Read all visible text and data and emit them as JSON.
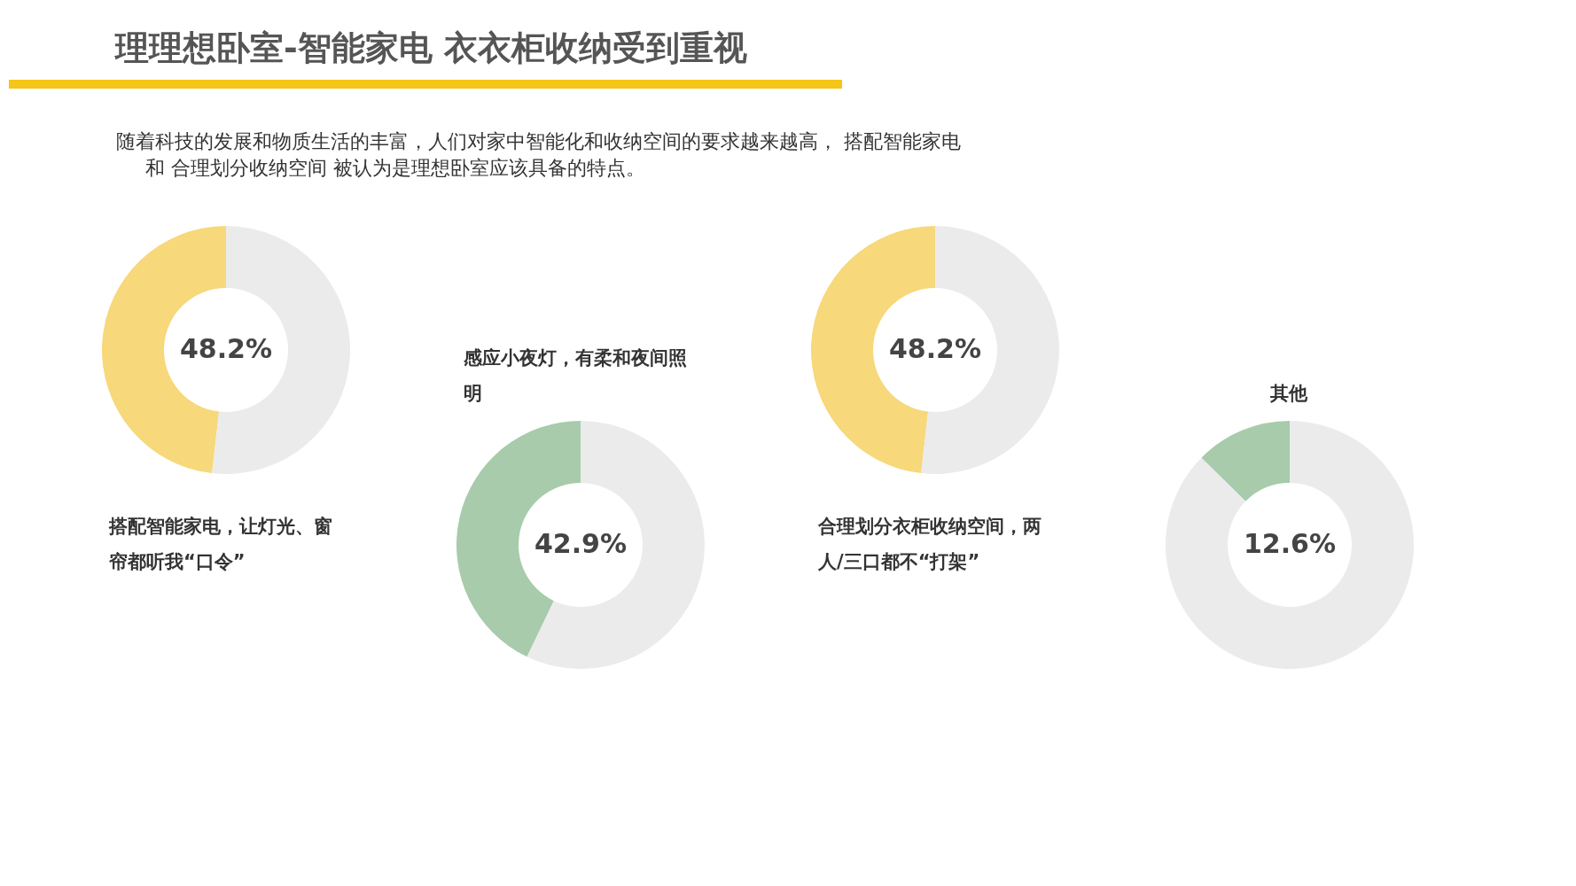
{
  "chart_data": [
    {
      "type": "donut",
      "title": "理理想卧室-智能家电 衣衣柜收纳受到重视",
      "subtitle": [
        "随着科技的发展和物质生活的丰富，人们对家中智能化和收纳空间的要求越来越高， 搭配智能家电",
        "和 合理划分收纳空间 被认为是理想卧室应该具备的特点。"
      ],
      "categories": [
        "搭配智能家电，让灯光、窗帘都听我“口令”",
        null
      ],
      "values": [
        48.2,
        51.8
      ],
      "colors": [
        "#f7d87a",
        "#ebebeb"
      ],
      "value_labels": [
        "48.2%",
        null
      ]
    },
    {
      "type": "donut",
      "categories": [
        "感应小夜灯，有柔和夜间照明",
        null
      ],
      "values": [
        42.9,
        57.1
      ],
      "colors": [
        "#a8cbab",
        "#ebebeb"
      ],
      "value_labels": [
        "42.9%",
        null
      ]
    },
    {
      "type": "donut",
      "categories": [
        "合理划分衣柜收纳空间，两人/三口都不“打架”",
        null
      ],
      "values": [
        48.2,
        51.8
      ],
      "colors": [
        "#f7d87a",
        "#ebebeb"
      ],
      "value_labels": [
        "48.2%",
        null
      ]
    },
    {
      "type": "donut",
      "categories": [
        "其他",
        null
      ],
      "values": [
        12.6,
        87.4
      ],
      "colors": [
        "#a8cbab",
        "#ebebeb"
      ],
      "value_labels": [
        "12.6%",
        null
      ]
    }
  ]
}
